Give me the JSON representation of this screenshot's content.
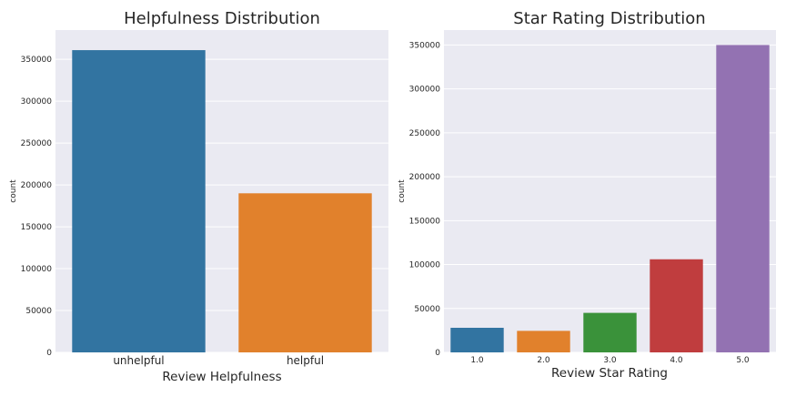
{
  "colors": {
    "axes_bg": "#eaeaf2",
    "grid": "#ffffff",
    "text": "#262626"
  },
  "chart_data": [
    {
      "type": "bar",
      "title": "Helpfulness Distribution",
      "xlabel": "Review Helpfulness",
      "ylabel": "count",
      "categories": [
        "unhelpful",
        "helpful"
      ],
      "values": [
        361000,
        190000
      ],
      "colors": [
        "#3274a1",
        "#e1812c"
      ],
      "ylim": [
        0,
        385000
      ],
      "yticks": [
        0,
        50000,
        100000,
        150000,
        200000,
        250000,
        300000,
        350000
      ],
      "grid": true
    },
    {
      "type": "bar",
      "title": "Star Rating Distribution",
      "xlabel": "Review Star Rating",
      "ylabel": "count",
      "categories": [
        "1.0",
        "2.0",
        "3.0",
        "4.0",
        "5.0"
      ],
      "values": [
        28000,
        24500,
        45000,
        106000,
        350000
      ],
      "colors": [
        "#3274a1",
        "#e1812c",
        "#3a923a",
        "#c03d3e",
        "#9372b2"
      ],
      "ylim": [
        0,
        367000
      ],
      "yticks": [
        0,
        50000,
        100000,
        150000,
        200000,
        250000,
        300000,
        350000
      ],
      "grid": true
    }
  ]
}
